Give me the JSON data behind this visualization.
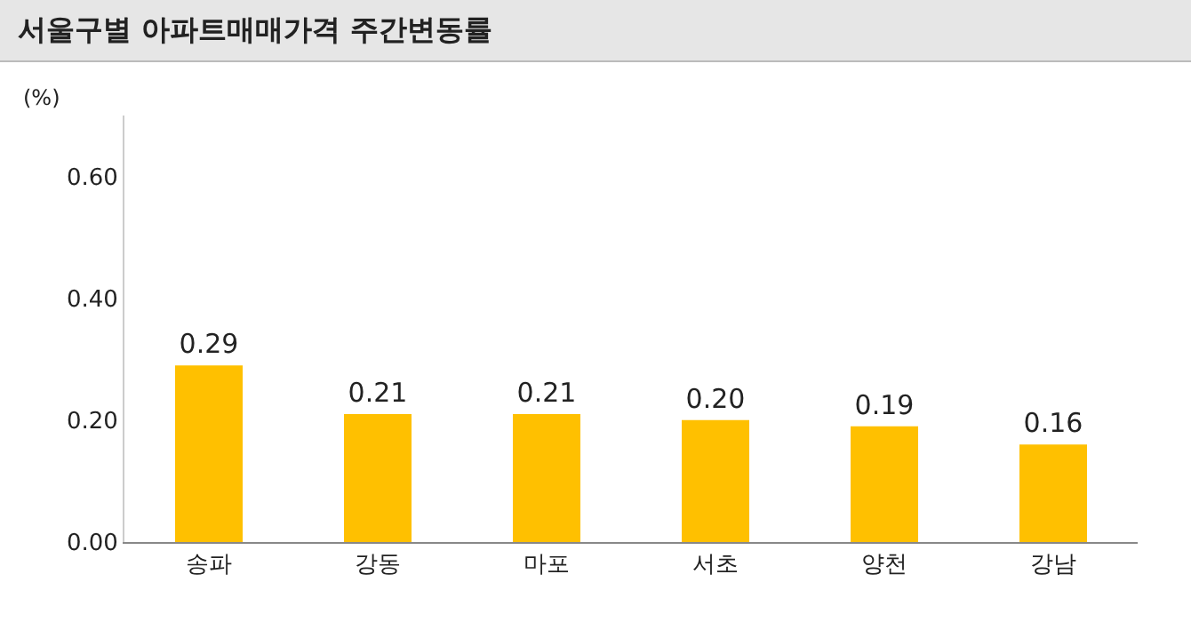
{
  "chart_data": {
    "type": "bar",
    "title": "서울구별 아파트매매가격 주간변동률",
    "ylabel": "(%)",
    "categories": [
      "송파",
      "강동",
      "마포",
      "서초",
      "양천",
      "강남"
    ],
    "values": [
      0.29,
      0.21,
      0.21,
      0.2,
      0.19,
      0.16
    ],
    "value_labels": [
      "0.29",
      "0.21",
      "0.21",
      "0.20",
      "0.19",
      "0.16"
    ],
    "color": "#ffc000",
    "ylim": [
      0,
      0.7
    ],
    "yticks": [
      "0.00",
      "0.20",
      "0.40",
      "0.60"
    ],
    "grid": false,
    "legend": false
  }
}
